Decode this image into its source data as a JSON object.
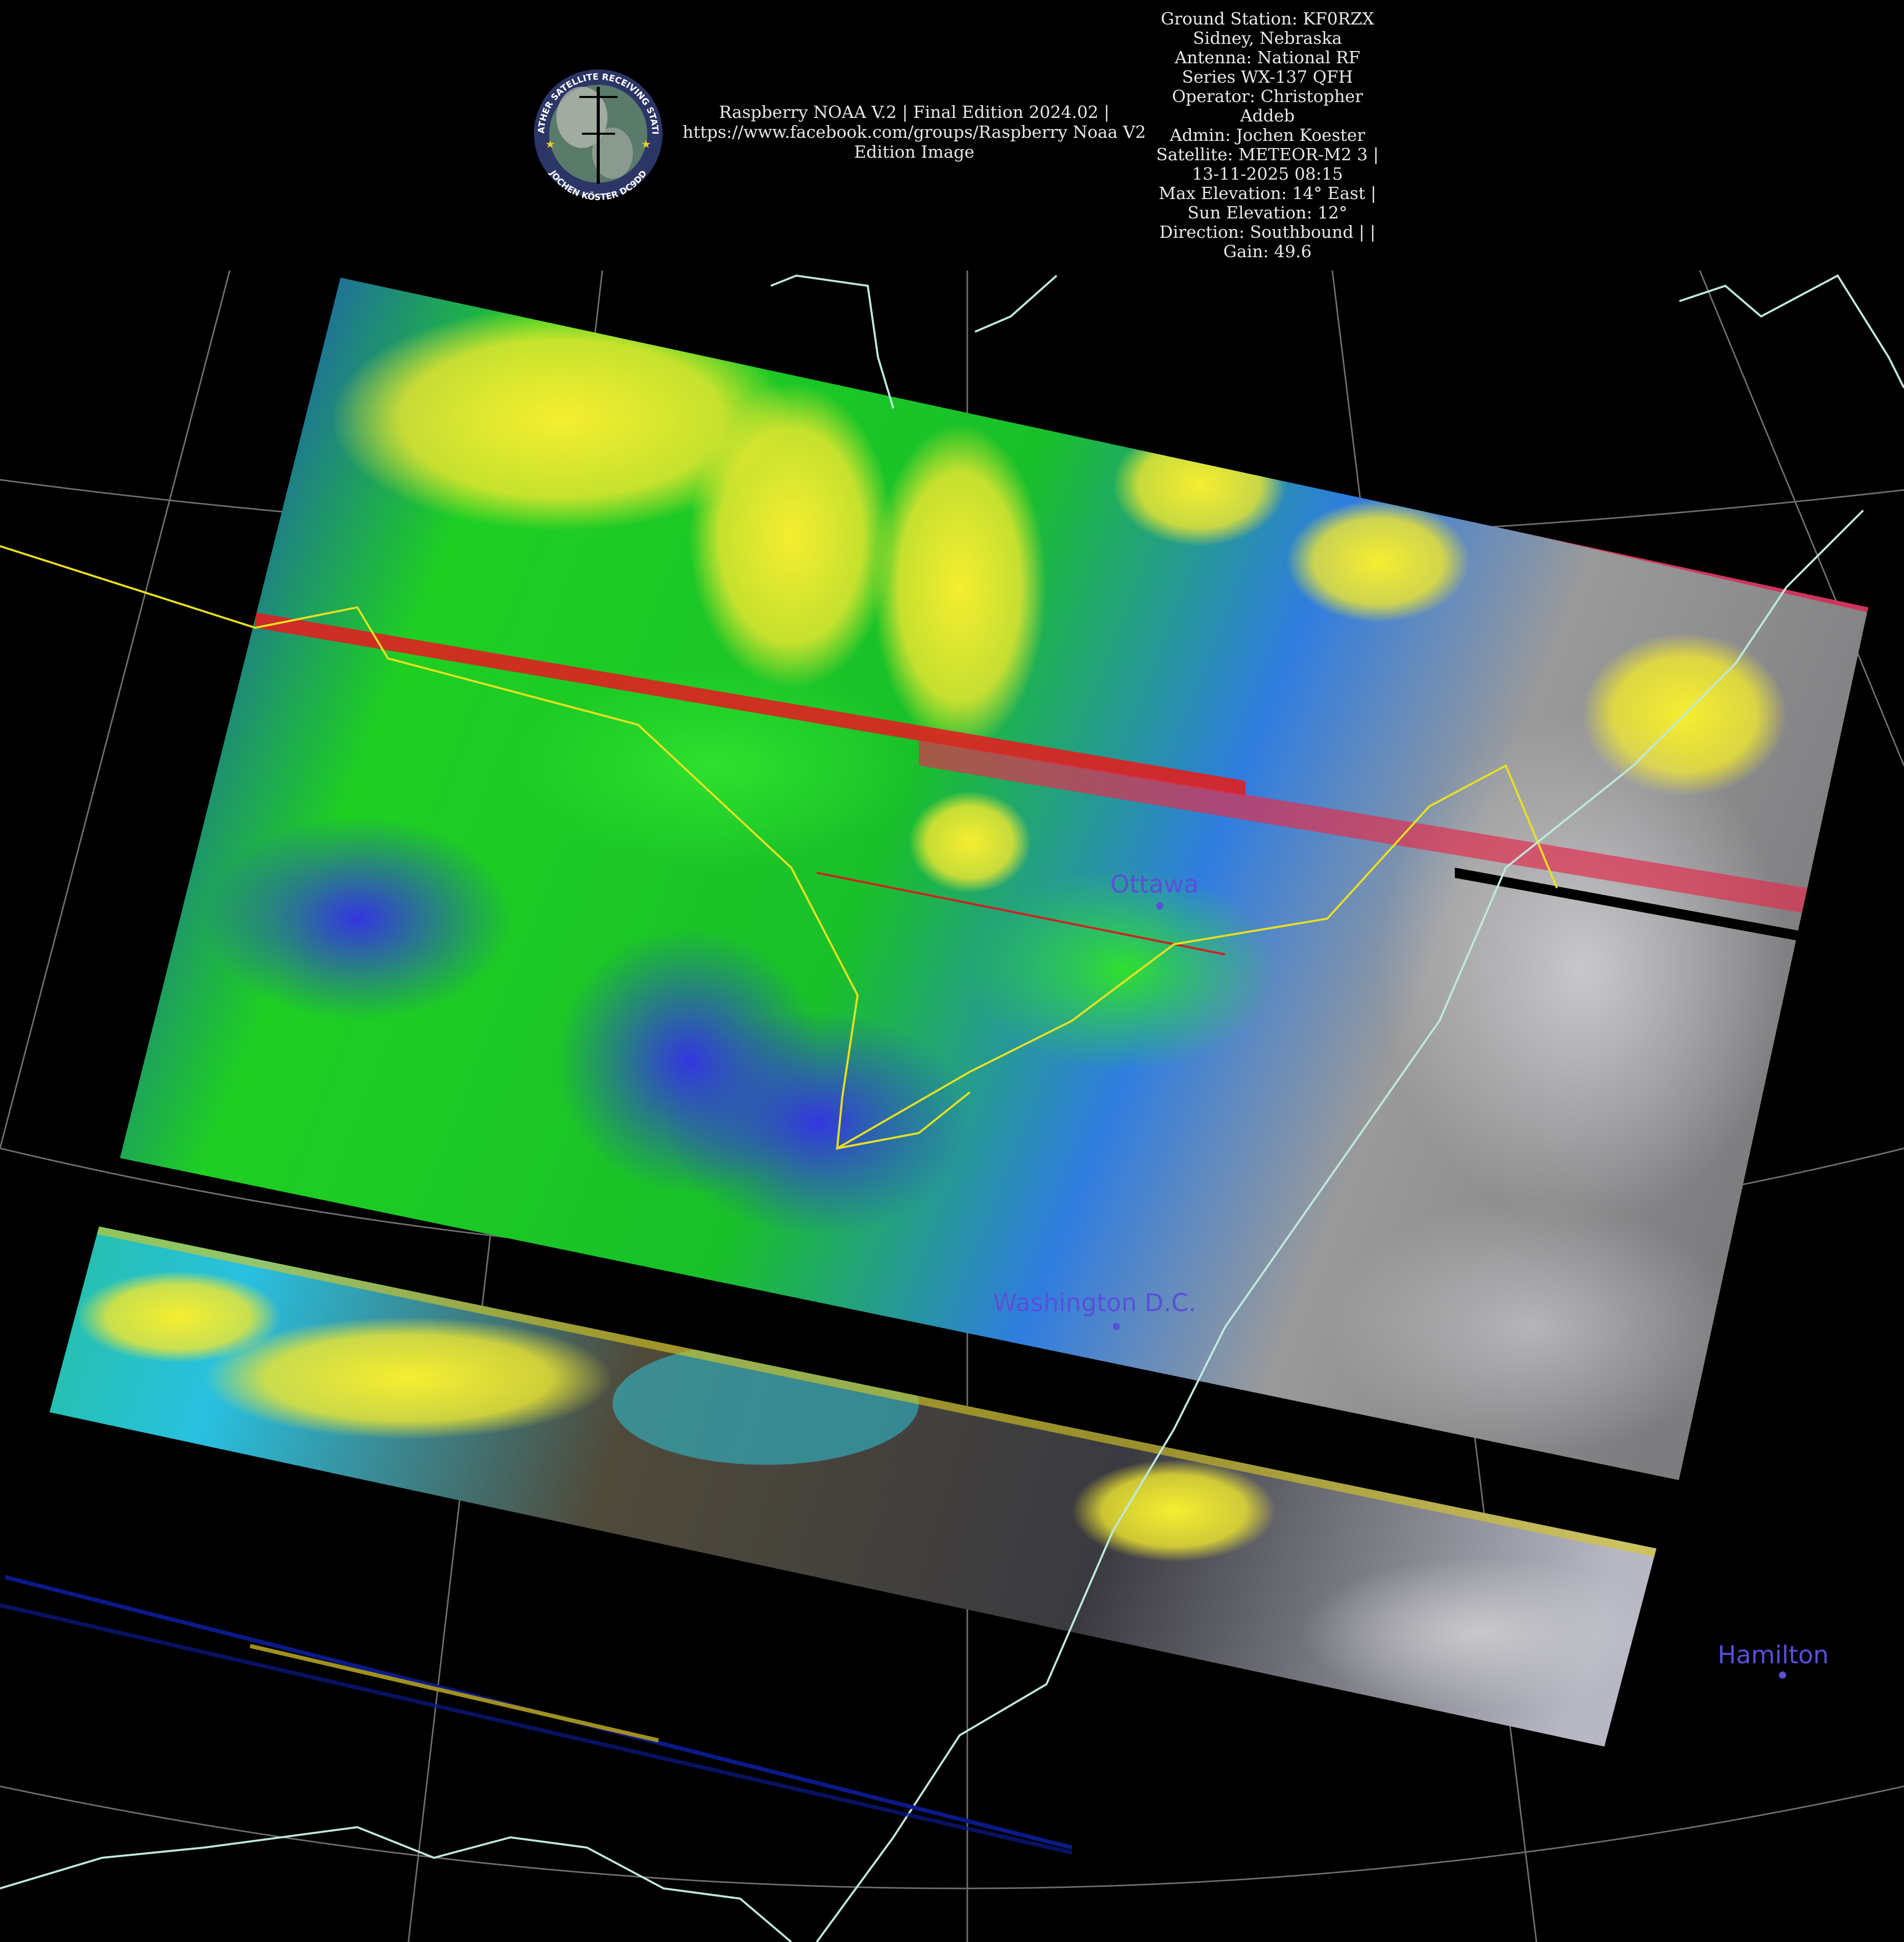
{
  "header": {
    "center_lines": [
      "Raspberry NOAA V.2 | Final Edition 2024.02 |",
      "https://www.facebook.com/groups/Raspberry Noaa V2",
      "Edition Image"
    ],
    "info_lines": [
      "Ground Station: KF0RZX",
      "Sidney, Nebraska",
      "Antenna: National RF",
      "Series WX-137 QFH",
      "Operator: Christopher",
      "Addeb",
      "Admin: Jochen Koester",
      "Satellite: METEOR-M2 3 |",
      "13-11-2025 08:15",
      "Max Elevation: 14° East |",
      "Sun Elevation: 12°",
      "Direction: Southbound | |",
      "Gain: 49.6"
    ]
  },
  "logo": {
    "top_text": "WEATHER SATELLITE RECEIVING STATION",
    "bottom_text": "JOCHEN KÖSTER DC9DD"
  },
  "map": {
    "cities": [
      {
        "name": "Ottawa"
      },
      {
        "name": "Washington D.C."
      },
      {
        "name": "Hamilton"
      }
    ],
    "colors": {
      "background": "#000000",
      "graticule": "#8a8a8a",
      "coastline": "#bfe8dc",
      "border": "#e8e020",
      "city_label": "#5a4fd8",
      "cloud_high": "#f2ea2a",
      "cloud_mid": "#1fd21f",
      "cloud_low": "#2a3bdc",
      "cloud_lowest": "#35c8ea",
      "clear": "#8a8a8a"
    }
  }
}
